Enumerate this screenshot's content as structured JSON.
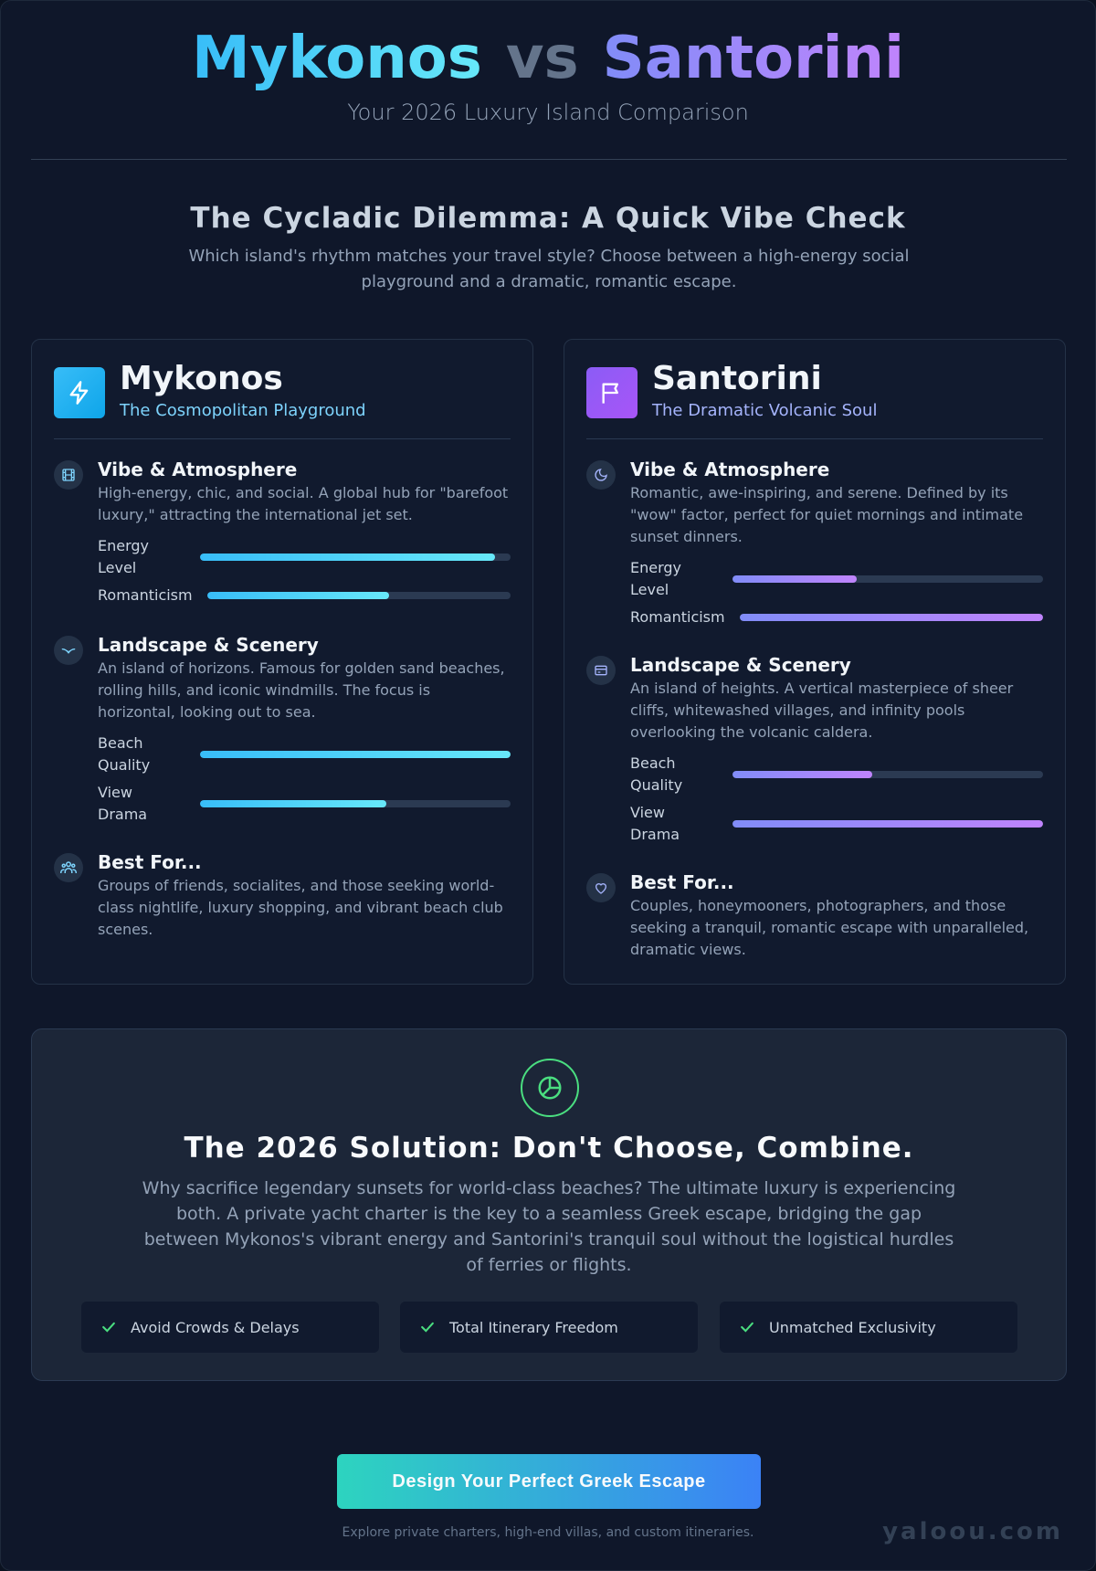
{
  "header": {
    "title_a": "Mykonos",
    "title_vs": "vs",
    "title_b": "Santorini",
    "subtitle": "Your 2026 Luxury Island Comparison"
  },
  "intro": {
    "title": "The Cycladic Dilemma: A Quick Vibe Check",
    "description": "Which island's rhythm matches your travel style? Choose between a high-energy social playground and a dramatic, romantic escape."
  },
  "mykonos": {
    "name": "Mykonos",
    "tagline": "The Cosmopolitan Playground",
    "badge_icon": "lightning-icon",
    "vibe": {
      "icon": "film-icon",
      "heading": "Vibe & Atmosphere",
      "text": "High-energy, chic, and social. A global hub for \"barefoot luxury,\" attracting the international jet set.",
      "metrics": [
        {
          "label_line1": "Energy",
          "label_line2": "Level",
          "level": 0.95
        },
        {
          "label_line1": "Romanticism",
          "label_line2": "",
          "level": 0.6
        }
      ]
    },
    "landscape": {
      "icon": "seagull-icon",
      "heading": "Landscape & Scenery",
      "text": "An island of horizons. Famous for golden sand beaches, rolling hills, and iconic windmills. The focus is horizontal, looking out to sea.",
      "metrics": [
        {
          "label_line1": "Beach",
          "label_line2": "Quality",
          "level": 1.0
        },
        {
          "label_line1": "View",
          "label_line2": "Drama",
          "level": 0.6
        }
      ]
    },
    "best": {
      "icon": "group-icon",
      "heading": "Best For...",
      "text": "Groups of friends, socialites, and those seeking world-class nightlife, luxury shopping, and vibrant beach club scenes."
    }
  },
  "santorini": {
    "name": "Santorini",
    "tagline": "The Dramatic Volcanic Soul",
    "badge_icon": "flag-icon",
    "vibe": {
      "icon": "moon-icon",
      "heading": "Vibe & Atmosphere",
      "text": "Romantic, awe-inspiring, and serene. Defined by its \"wow\" factor, perfect for quiet mornings and intimate sunset dinners.",
      "metrics": [
        {
          "label_line1": "Energy",
          "label_line2": "Level",
          "level": 0.4
        },
        {
          "label_line1": "Romanticism",
          "label_line2": "",
          "level": 1.0
        }
      ]
    },
    "landscape": {
      "icon": "card-icon",
      "heading": "Landscape & Scenery",
      "text": "An island of heights. A vertical masterpiece of sheer cliffs, whitewashed villages, and infinity pools overlooking the volcanic caldera.",
      "metrics": [
        {
          "label_line1": "Beach",
          "label_line2": "Quality",
          "level": 0.45
        },
        {
          "label_line1": "View",
          "label_line2": "Drama",
          "level": 1.0
        }
      ]
    },
    "best": {
      "icon": "heart-icon",
      "heading": "Best For...",
      "text": "Couples, honeymooners, photographers, and those seeking a tranquil, romantic escape with unparalleled, dramatic views."
    }
  },
  "solution": {
    "icon": "globe-icon",
    "title": "The 2026 Solution: Don't Choose, Combine.",
    "description": "Why sacrifice legendary sunsets for world-class beaches? The ultimate luxury is experiencing both. A private yacht charter is the key to a seamless Greek escape, bridging the gap between Mykonos's vibrant energy and Santorini's tranquil soul without the logistical hurdles of ferries or flights.",
    "benefits": [
      "Avoid Crowds & Delays",
      "Total Itinerary Freedom",
      "Unmatched Exclusivity"
    ]
  },
  "cta": {
    "label": "Design Your Perfect Greek Escape",
    "subtext": "Explore private charters, high-end villas, and custom itineraries."
  },
  "brand": "yaloou.com",
  "colors": {
    "background": "#0f172a",
    "mykonos_accent": "#38bdf8",
    "santorini_accent": "#a855f7",
    "check": "#4ade80"
  }
}
